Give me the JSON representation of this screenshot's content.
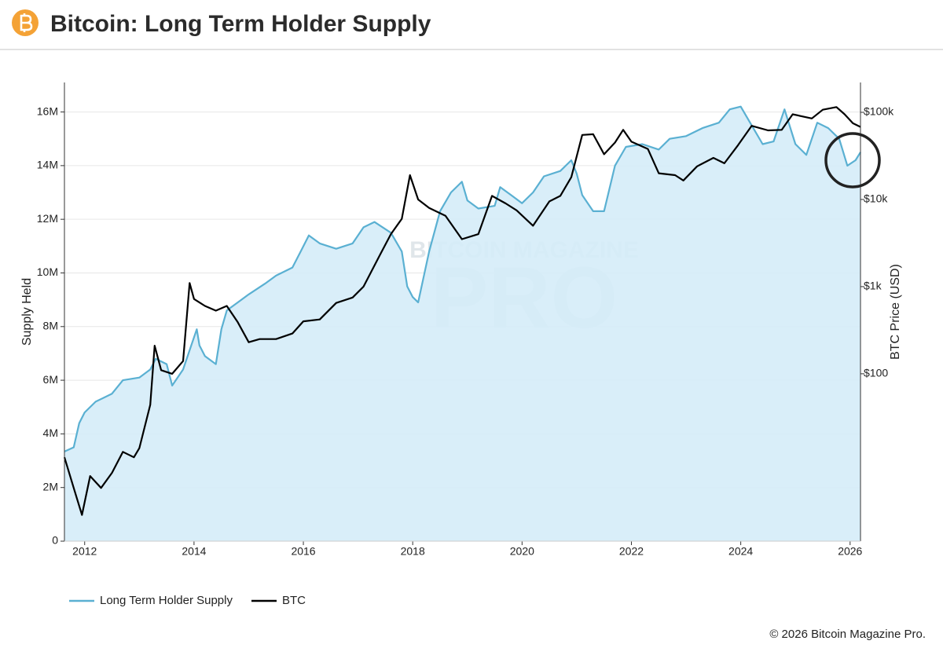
{
  "header": {
    "title": "Bitcoin: Long Term Holder Supply"
  },
  "chart_data": {
    "type": "line",
    "y_label": "Supply Held",
    "y2_label": "BTC Price (USD)",
    "watermark": [
      "BITCOIN MAGAZINE",
      "PRO"
    ],
    "xlim": [
      2011.63,
      2026.19
    ],
    "xticks": [
      2012,
      2014,
      2016,
      2018,
      2020,
      2022,
      2024,
      2026
    ],
    "ylim": [
      0,
      17100000
    ],
    "yticks": [
      0,
      {
        "value": 2000000,
        "label": "2M"
      },
      {
        "value": 4000000,
        "label": "4M"
      },
      {
        "value": 6000000,
        "label": "6M"
      },
      {
        "value": 8000000,
        "label": "8M"
      },
      {
        "value": 10000000,
        "label": "10M"
      },
      {
        "value": 12000000,
        "label": "12M"
      },
      {
        "value": 14000000,
        "label": "14M"
      },
      {
        "value": 16000000,
        "label": "16M"
      }
    ],
    "y2lim": [
      1.2,
      220000
    ],
    "y2_log": true,
    "y2ticks": [
      {
        "value": 100,
        "label": "$100"
      },
      {
        "value": 1000,
        "label": "$1k"
      },
      {
        "value": 10000,
        "label": "$10k"
      },
      {
        "value": 100000,
        "label": "$100k"
      }
    ],
    "grid": true,
    "legend": "bottom-left",
    "series": [
      {
        "name": "Long Term Holder Supply",
        "color": "#5ab0d2",
        "fill": "#d5ecf8",
        "x": [
          2011.63,
          2011.8,
          2011.9,
          2012.0,
          2012.2,
          2012.5,
          2012.7,
          2013.0,
          2013.2,
          2013.3,
          2013.5,
          2013.6,
          2013.8,
          2013.95,
          2014.05,
          2014.1,
          2014.2,
          2014.4,
          2014.5,
          2014.6,
          2014.8,
          2015.0,
          2015.3,
          2015.5,
          2015.8,
          2015.95,
          2016.1,
          2016.3,
          2016.6,
          2016.9,
          2017.1,
          2017.3,
          2017.6,
          2017.8,
          2017.9,
          2018.0,
          2018.1,
          2018.3,
          2018.5,
          2018.7,
          2018.9,
          2019.0,
          2019.2,
          2019.5,
          2019.6,
          2019.8,
          2020.0,
          2020.2,
          2020.4,
          2020.7,
          2020.9,
          2021.0,
          2021.1,
          2021.3,
          2021.5,
          2021.7,
          2021.9,
          2022.2,
          2022.5,
          2022.7,
          2023.0,
          2023.3,
          2023.6,
          2023.8,
          2024.0,
          2024.2,
          2024.4,
          2024.6,
          2024.8,
          2025.0,
          2025.2,
          2025.4,
          2025.6,
          2025.8,
          2025.95,
          2026.1,
          2026.19
        ],
        "values": [
          3340000,
          3500000,
          4400000,
          4800000,
          5200000,
          5500000,
          6000000,
          6100000,
          6400000,
          6800000,
          6600000,
          5800000,
          6400000,
          7300000,
          7900000,
          7300000,
          6900000,
          6600000,
          7900000,
          8600000,
          8900000,
          9200000,
          9600000,
          9900000,
          10200000,
          10800000,
          11400000,
          11100000,
          10900000,
          11100000,
          11700000,
          11900000,
          11500000,
          10800000,
          9500000,
          9100000,
          8900000,
          10800000,
          12300000,
          13000000,
          13400000,
          12700000,
          12400000,
          12500000,
          13200000,
          12900000,
          12600000,
          13000000,
          13600000,
          13800000,
          14200000,
          13700000,
          12900000,
          12300000,
          12300000,
          14000000,
          14700000,
          14800000,
          14600000,
          15000000,
          15100000,
          15400000,
          15600000,
          16100000,
          16200000,
          15500000,
          14800000,
          14900000,
          16100000,
          14800000,
          14400000,
          15600000,
          15400000,
          15000000,
          14000000,
          14200000,
          14500000
        ]
      },
      {
        "name": "BTC",
        "color": "#000000",
        "axis": "y2",
        "x": [
          2011.63,
          2011.8,
          2011.95,
          2012.1,
          2012.3,
          2012.5,
          2012.7,
          2012.9,
          2013.0,
          2013.2,
          2013.28,
          2013.4,
          2013.6,
          2013.8,
          2013.92,
          2014.0,
          2014.2,
          2014.4,
          2014.6,
          2014.8,
          2015.0,
          2015.2,
          2015.5,
          2015.8,
          2016.0,
          2016.3,
          2016.6,
          2016.9,
          2017.1,
          2017.4,
          2017.6,
          2017.8,
          2017.95,
          2018.1,
          2018.3,
          2018.6,
          2018.9,
          2019.2,
          2019.45,
          2019.7,
          2019.9,
          2020.2,
          2020.5,
          2020.7,
          2020.9,
          2021.1,
          2021.3,
          2021.5,
          2021.7,
          2021.85,
          2022.0,
          2022.3,
          2022.5,
          2022.8,
          2022.95,
          2023.2,
          2023.5,
          2023.7,
          2023.95,
          2024.2,
          2024.5,
          2024.75,
          2024.95,
          2025.3,
          2025.5,
          2025.75,
          2025.9,
          2026.05,
          2026.19
        ],
        "values": [
          11,
          4.9,
          2.4,
          6.7,
          4.9,
          7.3,
          12.7,
          11,
          14,
          44,
          210,
          110,
          100,
          140,
          1100,
          720,
          600,
          530,
          600,
          390,
          230,
          250,
          250,
          290,
          400,
          420,
          650,
          750,
          1000,
          2300,
          4000,
          6000,
          19000,
          10000,
          8000,
          6500,
          3500,
          4000,
          11000,
          9000,
          7500,
          5000,
          9500,
          11000,
          18000,
          55000,
          56000,
          33000,
          45000,
          63000,
          46000,
          38000,
          20000,
          19000,
          16500,
          24000,
          30000,
          26000,
          42000,
          70000,
          62000,
          63000,
          95000,
          85000,
          107000,
          115000,
          95000,
          75000,
          68000
        ]
      }
    ]
  },
  "footer": {
    "copyright": "© 2026 Bitcoin Magazine Pro."
  }
}
